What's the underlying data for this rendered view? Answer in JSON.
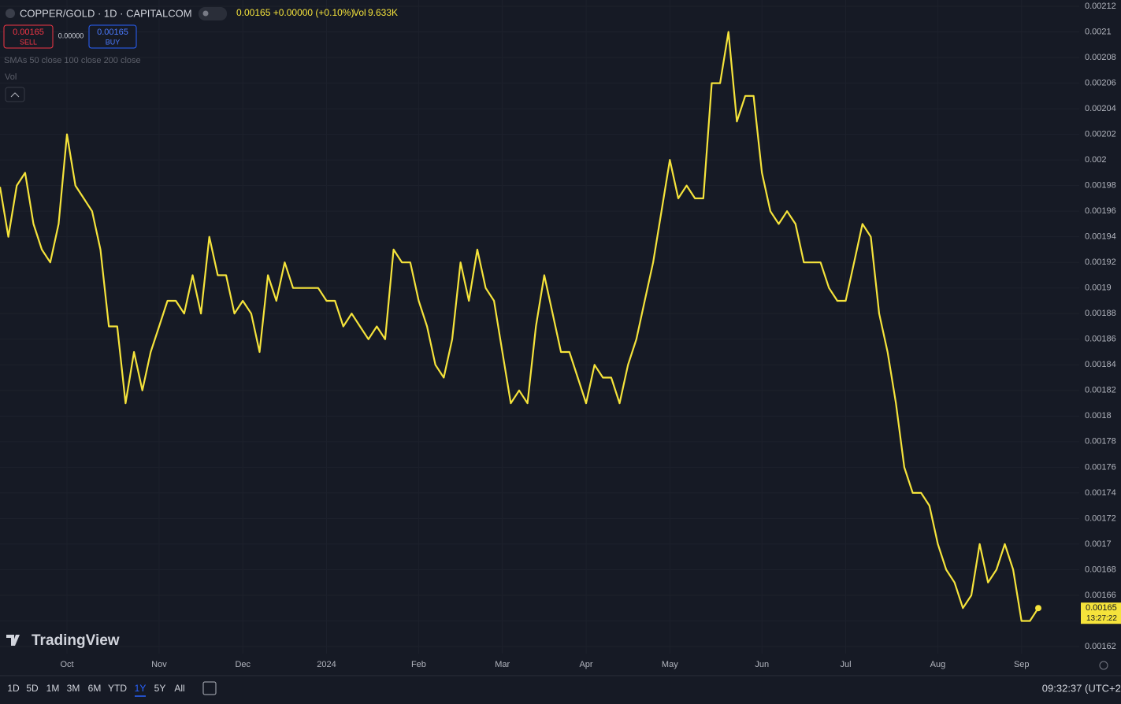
{
  "chart_data": {
    "type": "line",
    "categories": [
      null,
      null,
      null,
      null,
      null,
      null,
      null,
      null,
      "Oct",
      null,
      null,
      null,
      null,
      null,
      null,
      null,
      null,
      null,
      null,
      "Nov",
      null,
      null,
      null,
      null,
      null,
      null,
      null,
      null,
      null,
      "Dec",
      null,
      null,
      null,
      null,
      null,
      null,
      null,
      null,
      null,
      "2024",
      null,
      null,
      null,
      null,
      null,
      null,
      null,
      null,
      null,
      null,
      "Feb",
      null,
      null,
      null,
      null,
      null,
      null,
      null,
      null,
      null,
      "Mar",
      null,
      null,
      null,
      null,
      null,
      null,
      null,
      null,
      null,
      "Apr",
      null,
      null,
      null,
      null,
      null,
      null,
      null,
      null,
      null,
      "May",
      null,
      null,
      null,
      null,
      null,
      null,
      null,
      null,
      null,
      null,
      "Jun",
      null,
      null,
      null,
      null,
      null,
      null,
      null,
      null,
      null,
      "Jul",
      null,
      null,
      null,
      null,
      null,
      null,
      null,
      null,
      null,
      null,
      "Aug",
      null,
      null,
      null,
      null,
      null,
      null,
      null,
      null,
      null,
      "Sep",
      null,
      null
    ],
    "values": [
      0.001979,
      0.00194,
      0.00198,
      0.00199,
      0.00195,
      0.00193,
      0.00192,
      0.00195,
      0.00202,
      0.00198,
      0.00197,
      0.00196,
      0.00193,
      0.00187,
      0.00187,
      0.00181,
      0.00185,
      0.00182,
      0.00185,
      0.00187,
      0.00189,
      0.00189,
      0.00188,
      0.00191,
      0.00188,
      0.00194,
      0.00191,
      0.00191,
      0.00188,
      0.00189,
      0.00188,
      0.00185,
      0.00191,
      0.00189,
      0.00192,
      0.0019,
      0.0019,
      0.0019,
      0.0019,
      0.00189,
      0.00189,
      0.00187,
      0.00188,
      0.00187,
      0.00186,
      0.00187,
      0.00186,
      0.00193,
      0.00192,
      0.00192,
      0.00189,
      0.00187,
      0.00184,
      0.00183,
      0.00186,
      0.00192,
      0.00189,
      0.00193,
      0.0019,
      0.00189,
      0.00185,
      0.00181,
      0.00182,
      0.00181,
      0.00187,
      0.00191,
      0.00188,
      0.00185,
      0.00185,
      0.00183,
      0.00181,
      0.00184,
      0.00183,
      0.00183,
      0.00181,
      0.00184,
      0.00186,
      0.00189,
      0.00192,
      0.00196,
      0.002,
      0.00197,
      0.00198,
      0.00197,
      0.00197,
      0.00206,
      0.00206,
      0.0021,
      0.00203,
      0.00205,
      0.00205,
      0.00199,
      0.00196,
      0.00195,
      0.00196,
      0.00195,
      0.00192,
      0.00192,
      0.00192,
      0.0019,
      0.00189,
      0.00189,
      0.00192,
      0.00195,
      0.00194,
      0.00188,
      0.00185,
      0.00181,
      0.00176,
      0.00174,
      0.00174,
      0.00173,
      0.0017,
      0.00168,
      0.00167,
      0.00165,
      0.00166,
      0.0017,
      0.00167,
      0.00168,
      0.0017,
      0.00168,
      0.00164,
      0.00164,
      0.00165
    ],
    "color": "#f5e33b",
    "ylim": [
      0.00162,
      0.00212
    ],
    "yticks": [
      0.00162,
      0.00164,
      0.00166,
      0.00168,
      0.0017,
      0.00172,
      0.00174,
      0.00176,
      0.00178,
      0.0018,
      0.00182,
      0.00184,
      0.00186,
      0.00188,
      0.0019,
      0.00192,
      0.00194,
      0.00196,
      0.00198,
      0.002,
      0.00202,
      0.00204,
      0.00206,
      0.00208,
      0.0021,
      0.00212
    ],
    "grid": true
  },
  "header": {
    "symbol": "COPPER/GOLD · 1D · CAPITALCOM",
    "quote": "0.00165 +0.00000 (+0.10%)",
    "vol_label": "Vol",
    "vol_value": "9.633K",
    "sell_price": "0.00165",
    "sell": "SELL",
    "spread": "0.00000",
    "buy_price": "0.00165",
    "buy": "BUY",
    "indicators": "SMAs 50 close 100 close 200 close",
    "vol_indicator": "Vol"
  },
  "price_tag": {
    "countdown": "13:27:22"
  },
  "watermark": "TradingView",
  "toolbar": {
    "ranges": [
      "1D",
      "5D",
      "1M",
      "3M",
      "6M",
      "YTD",
      "1Y",
      "5Y",
      "All"
    ],
    "clock": "09:32:37 (UTC+2)"
  }
}
